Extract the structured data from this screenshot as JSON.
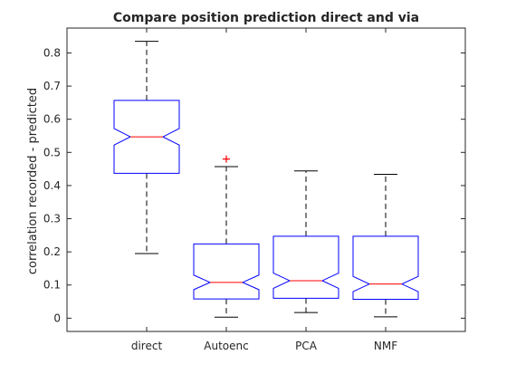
{
  "chart_data": {
    "type": "boxplot",
    "title": "Compare position prediction direct and via",
    "xlabel": "",
    "ylabel": "correlation recorded - predicted",
    "ylim": [
      -0.04,
      0.875
    ],
    "yticks": [
      "0",
      "0.1",
      "0.2",
      "0.3",
      "0.4",
      "0.5",
      "0.6",
      "0.7",
      "0.8"
    ],
    "grid": false,
    "notched": true,
    "colors": {
      "box": "#0000ff",
      "median": "#ff0000",
      "whisker": "#000000",
      "outlier": "#ff0000",
      "axes": "#262626"
    },
    "categories": [
      "direct",
      "Autoenc",
      "PCA",
      "NMF"
    ],
    "boxes": [
      {
        "label": "direct",
        "whisker_low": 0.195,
        "q1": 0.437,
        "median": 0.547,
        "q3": 0.657,
        "whisker_high": 0.835,
        "notch_low": 0.522,
        "notch_high": 0.572,
        "outliers": []
      },
      {
        "label": "Autoenc",
        "whisker_low": 0.003,
        "q1": 0.058,
        "median": 0.108,
        "q3": 0.224,
        "whisker_high": 0.457,
        "notch_low": 0.086,
        "notch_high": 0.13,
        "outliers": [
          0.48
        ]
      },
      {
        "label": "PCA",
        "whisker_low": 0.017,
        "q1": 0.06,
        "median": 0.113,
        "q3": 0.247,
        "whisker_high": 0.444,
        "notch_low": 0.09,
        "notch_high": 0.136,
        "outliers": []
      },
      {
        "label": "NMF",
        "whisker_low": 0.004,
        "q1": 0.057,
        "median": 0.103,
        "q3": 0.247,
        "whisker_high": 0.434,
        "notch_low": 0.08,
        "notch_high": 0.126,
        "outliers": []
      }
    ]
  }
}
